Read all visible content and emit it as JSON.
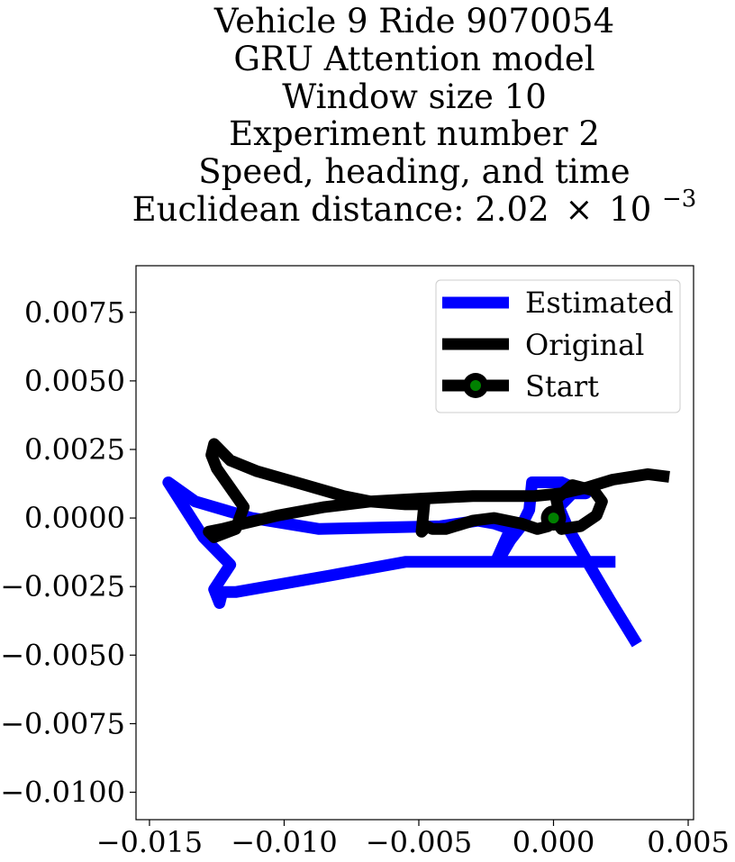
{
  "chart_data": {
    "type": "line",
    "title_lines": [
      "Vehicle 9 Ride 9070054",
      "GRU Attention model",
      "Window size 10",
      "Experiment number 2",
      "Speed, heading, and time"
    ],
    "title_metric_prefix": "Euclidean distance: 2.02",
    "title_metric_times": "×",
    "title_metric_base": "10",
    "title_metric_exponent": "−3",
    "xlim": [
      -0.0155,
      0.0052
    ],
    "ylim": [
      -0.011,
      0.0092
    ],
    "xticks": [
      -0.015,
      -0.01,
      -0.005,
      0.0,
      0.005
    ],
    "xtick_labels": [
      "−0.015",
      "−0.010",
      "−0.005",
      "0.000",
      "0.005"
    ],
    "yticks": [
      0.0075,
      0.005,
      0.0025,
      0.0,
      -0.0025,
      -0.005,
      -0.0075,
      -0.01
    ],
    "ytick_labels": [
      "0.0075",
      "0.0050",
      "0.0025",
      "0.0000",
      "−0.0025",
      "−0.0050",
      "−0.0075",
      "−0.0100"
    ],
    "legend_position": "upper-right",
    "grid": false,
    "series": [
      {
        "name": "Estimated",
        "color": "#0000ff",
        "points": [
          [
            0.0031,
            -0.0046
          ],
          [
            0.0021,
            -0.003
          ],
          [
            0.0012,
            -0.0015
          ],
          [
            0.0005,
            -0.0003
          ],
          [
            0.0002,
            0.0004
          ],
          [
            0.0007,
            0.0009
          ],
          [
            0.0012,
            0.0009
          ],
          [
            0.0003,
            0.0013
          ],
          [
            -0.0008,
            0.0013
          ],
          [
            -0.0009,
            0.0003
          ],
          [
            -0.0012,
            -0.0003
          ],
          [
            -0.0016,
            -0.0008
          ],
          [
            -0.0019,
            -0.0013
          ],
          [
            -0.0021,
            -0.0015
          ],
          [
            -0.0016,
            -0.0004
          ],
          [
            -0.0022,
            -0.0002
          ],
          [
            -0.0028,
            -0.0001
          ],
          [
            -0.0042,
            -0.0003
          ],
          [
            -0.0087,
            -0.0004
          ],
          [
            -0.0112,
            0.0
          ],
          [
            -0.0133,
            0.0006
          ],
          [
            -0.0143,
            0.0013
          ],
          [
            -0.013,
            -0.0007
          ],
          [
            -0.012,
            -0.0017
          ],
          [
            -0.0126,
            -0.0026
          ],
          [
            -0.0124,
            -0.0031
          ],
          [
            -0.0123,
            -0.0027
          ],
          [
            -0.0118,
            -0.0027
          ],
          [
            -0.0083,
            -0.0021
          ],
          [
            -0.0055,
            -0.0016
          ],
          [
            -0.0045,
            -0.0016
          ],
          [
            -0.0022,
            -0.0016
          ],
          [
            -0.0008,
            -0.0016
          ],
          [
            0.0007,
            -0.0016
          ],
          [
            0.0023,
            -0.0016
          ]
        ]
      },
      {
        "name": "Original",
        "color": "#000000",
        "points": [
          [
            0.0043,
            0.0015
          ],
          [
            0.0035,
            0.0016
          ],
          [
            0.0022,
            0.0014
          ],
          [
            0.0012,
            0.0011
          ],
          [
            0.0003,
            0.0009
          ],
          [
            -0.0007,
            0.0008
          ],
          [
            -0.0015,
            0.0008
          ],
          [
            -0.003,
            0.0008
          ],
          [
            -0.005,
            0.0007
          ],
          [
            -0.0068,
            0.0006
          ],
          [
            -0.0085,
            0.0004
          ],
          [
            -0.0102,
            0.0001
          ],
          [
            -0.0115,
            -0.0002
          ],
          [
            -0.0123,
            -0.0004
          ],
          [
            -0.0128,
            -0.0005
          ],
          [
            -0.0126,
            -0.0007
          ],
          [
            -0.0118,
            -0.0004
          ],
          [
            -0.0115,
            0.0004
          ],
          [
            -0.012,
            0.0011
          ],
          [
            -0.0125,
            0.0018
          ],
          [
            -0.0127,
            0.0023
          ],
          [
            -0.0126,
            0.0027
          ],
          [
            -0.012,
            0.0021
          ],
          [
            -0.011,
            0.0017
          ],
          [
            -0.0092,
            0.0012
          ],
          [
            -0.0078,
            0.0008
          ],
          [
            -0.0068,
            0.0006
          ],
          [
            -0.0055,
            0.0005
          ],
          [
            -0.0048,
            0.0005
          ],
          [
            -0.0049,
            -0.0005
          ],
          [
            -0.0047,
            -0.0003
          ],
          [
            -0.0045,
            -0.0004
          ],
          [
            -0.004,
            -0.0004
          ],
          [
            -0.003,
            -0.0001
          ],
          [
            -0.0022,
            0.0
          ],
          [
            -0.0012,
            -0.0002
          ],
          [
            -0.0006,
            -0.0004
          ],
          [
            -0.0002,
            -0.0003
          ],
          [
            0.0002,
            0.0002
          ],
          [
            0.0001,
            0.0007
          ],
          [
            0.0007,
            0.0012
          ],
          [
            0.0015,
            0.001
          ],
          [
            0.0018,
            0.0006
          ],
          [
            0.0016,
            0.0001
          ],
          [
            0.001,
            -0.0003
          ],
          [
            0.0003,
            -0.0004
          ],
          [
            0.0,
            0.0
          ]
        ]
      },
      {
        "name": "Start",
        "color": "#000000",
        "marker_face_color": "#008000",
        "points": [
          [
            0.0,
            0.0
          ]
        ]
      }
    ]
  }
}
